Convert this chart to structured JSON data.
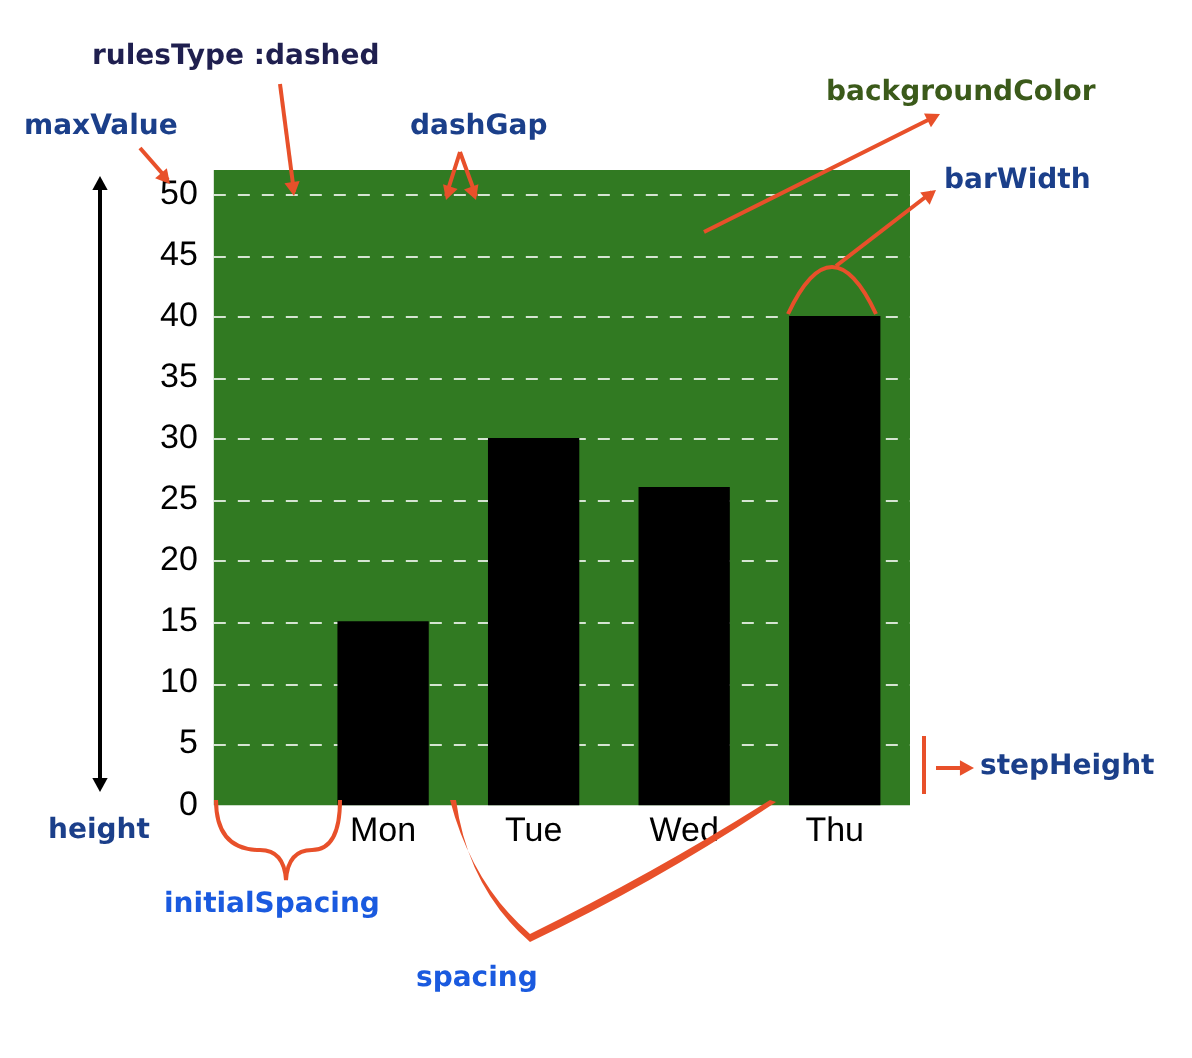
{
  "chart_data": {
    "type": "bar",
    "categories": [
      "Mon",
      "Tue",
      "Wed",
      "Thu"
    ],
    "values": [
      15,
      30,
      26,
      40
    ],
    "color": "#000000",
    "ylim": [
      0,
      52
    ],
    "yticks": [
      0,
      5,
      10,
      15,
      20,
      25,
      30,
      35,
      40,
      45,
      50
    ],
    "grid": "y",
    "line_style": "dashed",
    "annotations": [
      "rulesType :dashed",
      "maxValue",
      "dashGap",
      "backgroundColor",
      "barWidth",
      "stepHeight",
      "height",
      "initialSpacing",
      "spacing"
    ]
  }
}
